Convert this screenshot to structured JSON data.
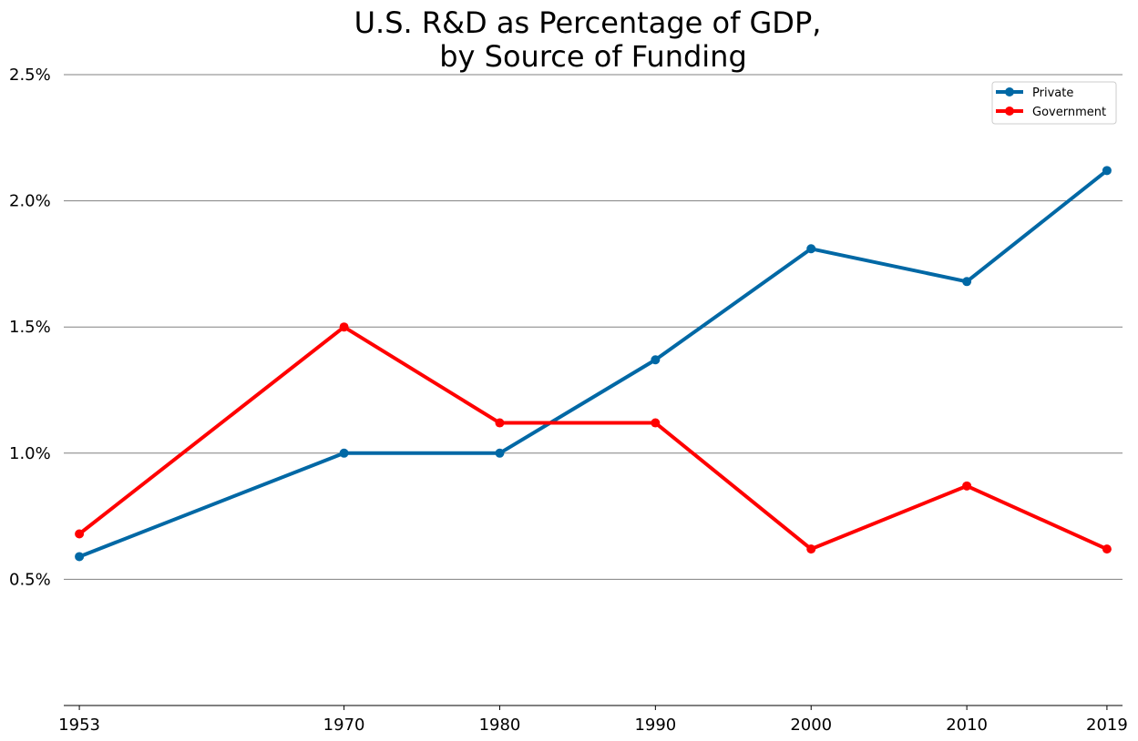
{
  "chart_data": {
    "type": "line",
    "title": [
      "U.S. R&D as Percentage of GDP,",
      "by Source of Funding"
    ],
    "xlabel": "",
    "ylabel": "",
    "x": [
      1953,
      1970,
      1980,
      1990,
      2000,
      2010,
      2019
    ],
    "x_tick_labels": [
      "1953",
      "1970",
      "1980",
      "1990",
      "2000",
      "2010",
      "2019"
    ],
    "xlim": [
      1952,
      2020
    ],
    "ylim": [
      0.0,
      2.5
    ],
    "y_ticks": [
      0.5,
      1.0,
      1.5,
      2.0,
      2.5
    ],
    "y_tick_labels": [
      "0.5%",
      "1.0%",
      "1.5%",
      "2.0%",
      "2.5%"
    ],
    "grid": "horizontal",
    "legend_position": "top-right",
    "series": [
      {
        "name": "Private",
        "color": "#0068a5",
        "values": [
          0.59,
          1.0,
          1.0,
          1.37,
          1.81,
          1.68,
          2.12
        ]
      },
      {
        "name": "Government",
        "color": "#ff0000",
        "values": [
          0.68,
          1.5,
          1.12,
          1.12,
          0.62,
          0.87,
          0.62
        ]
      }
    ]
  }
}
